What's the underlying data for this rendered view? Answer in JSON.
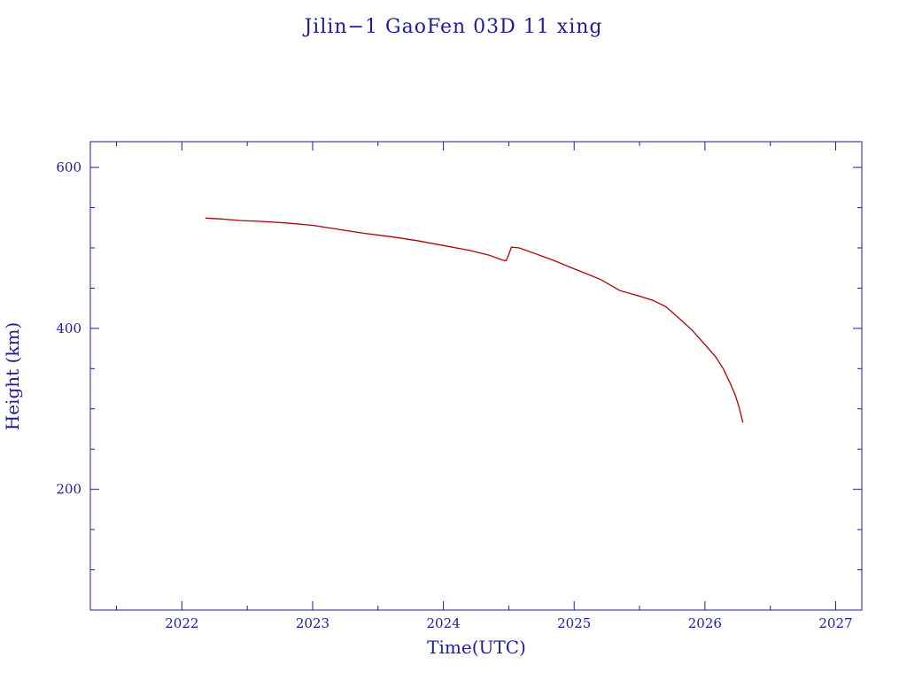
{
  "chart_data": {
    "type": "line",
    "title": "Jilin−1 GaoFen 03D 11 xing",
    "xlabel": "Time(UTC)",
    "ylabel": "Height (km)",
    "xlim": [
      2021.3,
      2027.2
    ],
    "ylim": [
      50,
      632
    ],
    "x_major_ticks": [
      2022,
      2023,
      2024,
      2025,
      2026,
      2027
    ],
    "x_minor_ticks": [
      2021.5,
      2022.5,
      2023.5,
      2024.5,
      2025.5,
      2026.5
    ],
    "y_major_ticks": [
      200,
      400,
      600
    ],
    "y_minor_ticks": [
      100,
      150,
      250,
      300,
      350,
      450,
      500,
      550
    ],
    "grid": false,
    "colors": {
      "axes": "#1c1c9c",
      "series": "#b00000"
    },
    "series": [
      {
        "x": [
          2022.18,
          2022.3,
          2022.45,
          2022.6,
          2022.8,
          2023.0,
          2023.2,
          2023.4,
          2023.6,
          2023.8,
          2024.0,
          2024.2,
          2024.35,
          2024.45,
          2024.48,
          2024.5,
          2024.52,
          2024.58,
          2024.7,
          2024.85,
          2025.0,
          2025.2,
          2025.35,
          2025.5,
          2025.6,
          2025.7,
          2025.8,
          2025.9,
          2026.0,
          2026.08,
          2026.14,
          2026.19,
          2026.23,
          2026.26,
          2026.29
        ],
        "y": [
          537,
          536,
          534,
          533,
          531,
          528,
          523,
          518,
          514,
          509,
          503,
          497,
          491,
          485,
          484,
          492,
          501,
          500,
          493,
          484,
          474,
          461,
          447,
          440,
          435,
          427,
          413,
          398,
          380,
          365,
          350,
          333,
          318,
          303,
          283
        ]
      }
    ]
  }
}
